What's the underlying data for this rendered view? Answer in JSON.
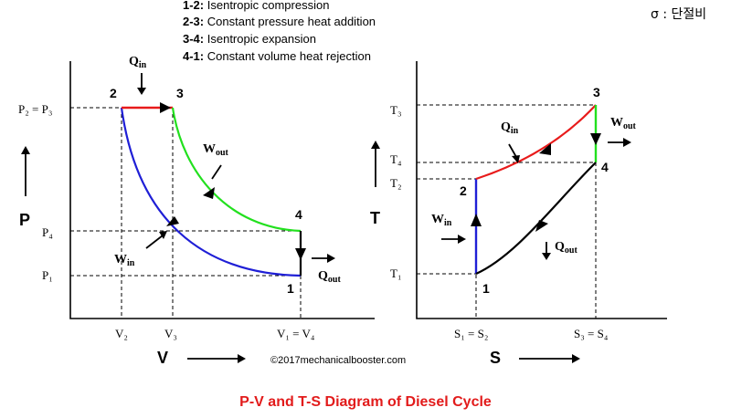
{
  "legend": [
    {
      "key": "1-2:",
      "text": "Isentropic compression"
    },
    {
      "key": "2-3:",
      "text": "Constant pressure heat addition"
    },
    {
      "key": "3-4:",
      "text": "Isentropic expansion"
    },
    {
      "key": "4-1:",
      "text": "Constant volume heat rejection"
    }
  ],
  "note": "σ : 단절비",
  "pv": {
    "y_axis": "P",
    "x_axis": "V",
    "y_ticks": [
      "P₂ = P₃",
      "P₄",
      "P₁"
    ],
    "x_ticks": [
      "V₂",
      "V₃",
      "V₁ = V₄"
    ],
    "points": [
      "1",
      "2",
      "3",
      "4"
    ],
    "q_in": "Q",
    "q_in_sub": "in",
    "w_out": "W",
    "w_out_sub": "out",
    "w_in": "W",
    "w_in_sub": "in",
    "q_out": "Q",
    "q_out_sub": "out"
  },
  "ts": {
    "y_axis": "T",
    "x_axis": "S",
    "y_ticks": [
      "T₃",
      "T₄",
      "T₂",
      "T₁"
    ],
    "x_ticks": [
      "S₁ = S₂",
      "S₃ = S₄"
    ],
    "points": [
      "1",
      "2",
      "3",
      "4"
    ],
    "q_in": "Q",
    "q_in_sub": "in",
    "w_out": "W",
    "w_out_sub": "out",
    "w_in": "W",
    "w_in_sub": "in",
    "q_out": "Q",
    "q_out_sub": "out"
  },
  "credit": "©2017mechanicalbooster.com",
  "title": "P-V and T-S Diagram of Diesel Cycle",
  "colors": {
    "compression": "#1f1fd6",
    "heat_addition": "#e81b1b",
    "expansion": "#22e01e",
    "heat_rejection": "#000000",
    "title": "#e21b1b"
  }
}
